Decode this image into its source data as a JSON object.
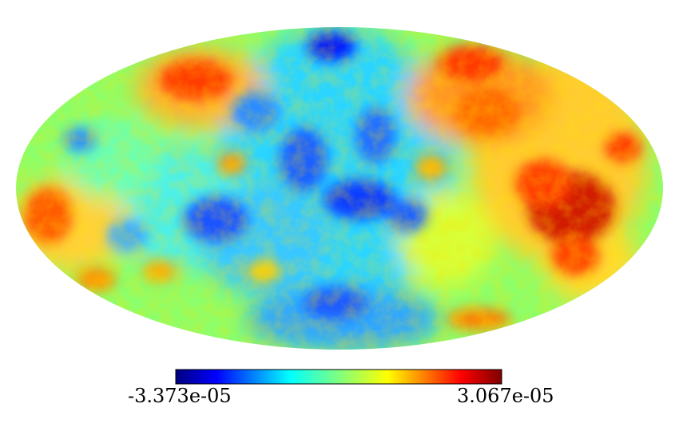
{
  "map": {
    "projection": "mollweide",
    "colormap": "jet",
    "background": "#ffffff"
  },
  "colorbar": {
    "min_label": "-3.373e-05",
    "max_label": "3.067e-05",
    "min_value": -3.373e-05,
    "max_value": 3.067e-05,
    "colors": [
      "#00007f",
      "#0000ff",
      "#007fff",
      "#00ffff",
      "#7fff7f",
      "#ffff00",
      "#ff7f00",
      "#ff0000",
      "#7f0000"
    ]
  }
}
